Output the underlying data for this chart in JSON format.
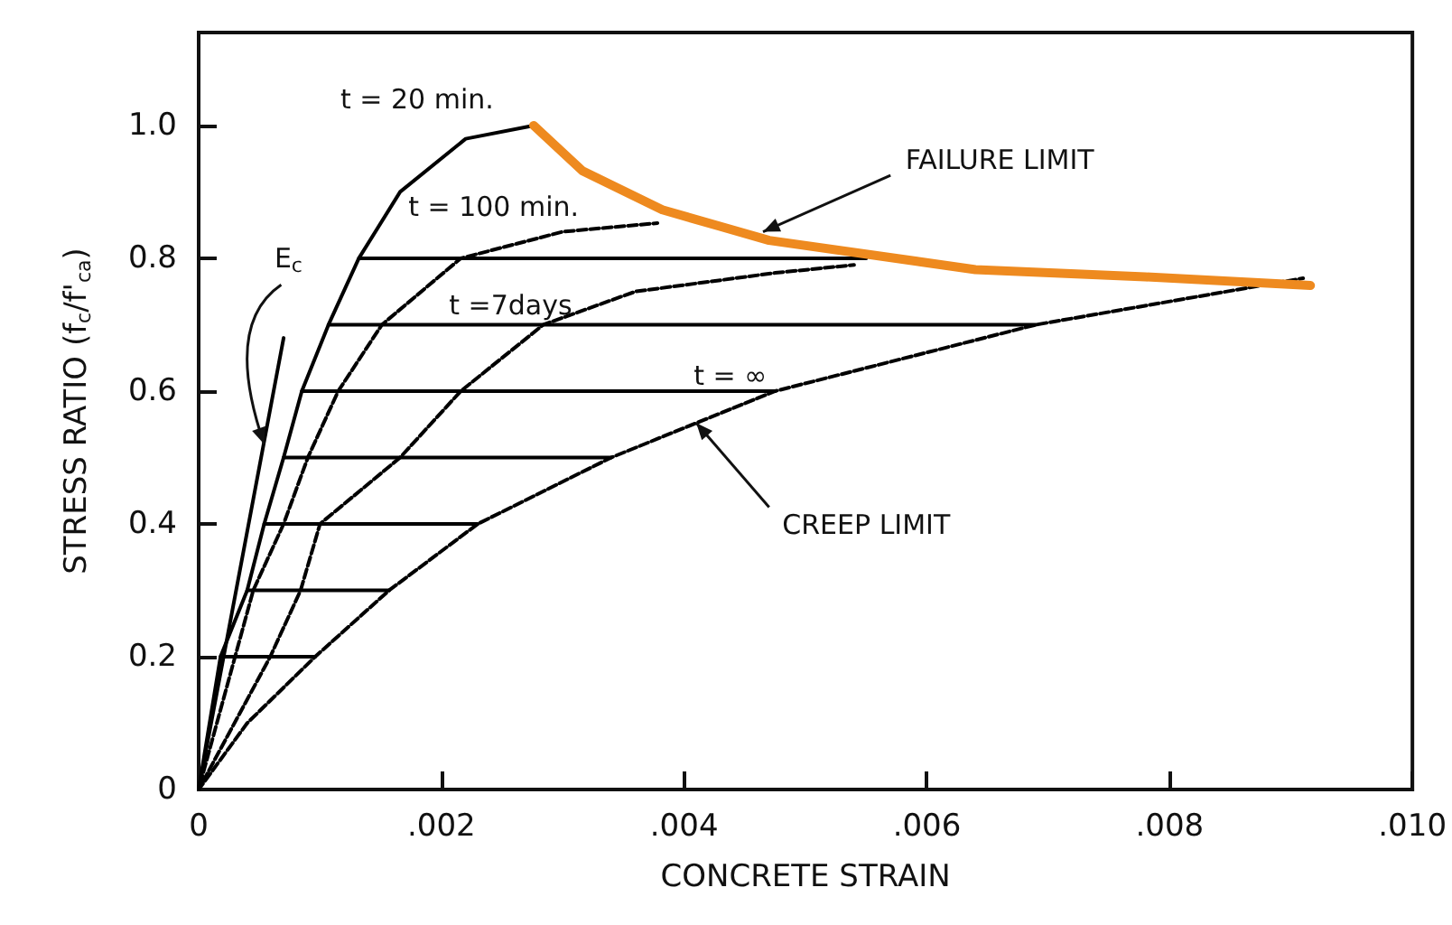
{
  "chart_data": {
    "type": "line",
    "xlabel": "CONCRETE STRAIN",
    "ylabel": "STRESS RATIO (f$_{c}$/f'$_{ca}$)",
    "xlim": [
      0,
      0.01
    ],
    "ylim": [
      0,
      1.14
    ],
    "xticks": [
      0,
      {
        "value": 0.002,
        "label": ".002"
      },
      {
        "value": 0.004,
        "label": ".004"
      },
      {
        "value": 0.006,
        "label": ".006"
      },
      {
        "value": 0.008,
        "label": ".008"
      },
      {
        "value": 0.01,
        "label": ".010"
      }
    ],
    "yticks": [
      0,
      0.2,
      0.4,
      0.6,
      0.8,
      {
        "value": 1,
        "label": "1.0"
      }
    ],
    "grid": false,
    "marker": "none",
    "series": [
      {
        "color": "#000000",
        "line_style": "solid",
        "x": [
          0,
          0.0007
        ],
        "values": [
          0,
          0.68
        ]
      },
      {
        "color": "#000000",
        "line_style": "solid",
        "x": [
          0,
          0.00018,
          0.0004,
          0.00054,
          0.0007,
          0.00085,
          0.00107,
          0.00132,
          0.00166,
          0.0022,
          0.00276
        ],
        "values": [
          0,
          0.2,
          0.3,
          0.4,
          0.5,
          0.6,
          0.7,
          0.8,
          0.9,
          0.98,
          1.0
        ]
      },
      {
        "color": "#000000",
        "line_style": "dashed",
        "x": [
          0,
          0.00045,
          0.0007,
          0.0009,
          0.00115,
          0.00151,
          0.00216,
          0.003,
          0.00378
        ],
        "values": [
          0,
          0.3,
          0.4,
          0.5,
          0.6,
          0.7,
          0.8,
          0.84,
          0.853
        ]
      },
      {
        "color": "#000000",
        "line_style": "dashed",
        "x": [
          0,
          0.00059,
          0.00084,
          0.001,
          0.00166,
          0.00216,
          0.00284,
          0.0036,
          0.00475,
          0.0054
        ],
        "values": [
          0,
          0.2,
          0.3,
          0.4,
          0.5,
          0.6,
          0.7,
          0.75,
          0.778,
          0.79
        ]
      },
      {
        "color": "#000000",
        "line_style": "dashed",
        "x": [
          0,
          0.0004,
          0.00096,
          0.00157,
          0.0023,
          0.0034,
          0.00475,
          0.0069,
          0.0091
        ],
        "values": [
          0,
          0.1,
          0.2,
          0.3,
          0.4,
          0.5,
          0.6,
          0.7,
          0.77
        ]
      },
      {
        "color": "#000000",
        "line_style": "solid",
        "x": [
          0.00132,
          0.0055
        ],
        "values": [
          0.8,
          0.8
        ]
      },
      {
        "color": "#000000",
        "line_style": "solid",
        "x": [
          0.00107,
          0.0069
        ],
        "values": [
          0.7,
          0.7
        ]
      },
      {
        "color": "#000000",
        "line_style": "solid",
        "x": [
          0.00085,
          0.00475
        ],
        "values": [
          0.6,
          0.6
        ]
      },
      {
        "color": "#000000",
        "line_style": "solid",
        "x": [
          0.0007,
          0.0034
        ],
        "values": [
          0.5,
          0.5
        ]
      },
      {
        "color": "#000000",
        "line_style": "solid",
        "x": [
          0.00054,
          0.0023
        ],
        "values": [
          0.4,
          0.4
        ]
      },
      {
        "color": "#000000",
        "line_style": "solid",
        "x": [
          0.0004,
          0.00157
        ],
        "values": [
          0.3,
          0.3
        ]
      },
      {
        "color": "#000000",
        "line_style": "solid",
        "x": [
          0.00018,
          0.00096
        ],
        "values": [
          0.2,
          0.2
        ]
      },
      {
        "color": "#ee8a1f",
        "line_style": "solid",
        "x": [
          0.00276,
          0.00316,
          0.00382,
          0.0047,
          0.0064,
          0.0078,
          0.00916
        ],
        "values": [
          1.0,
          0.932,
          0.873,
          0.827,
          0.783,
          0.772,
          0.759
        ]
      }
    ],
    "annotations": [
      "t = 20 min.",
      "t = 100 min.",
      "t =7days",
      "t = ∞",
      {
        "text": "FAILURE LIMIT",
        "x": 0.00465,
        "y": 0.84
      },
      {
        "text": "CREEP LIMIT",
        "x": 0.0041,
        "y": 0.552
      },
      {
        "text": "E$_{c}$",
        "x": 0.00054,
        "y": 0.52
      }
    ]
  }
}
